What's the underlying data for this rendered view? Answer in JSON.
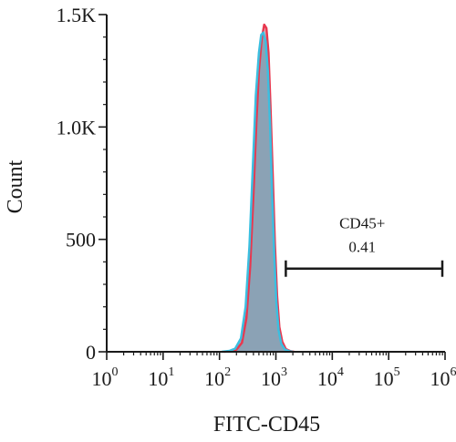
{
  "chart_data": {
    "type": "area",
    "title": "",
    "xlabel": "FITC-CD45",
    "ylabel": "Count",
    "x_scale": "log",
    "xlim": [
      1,
      1000000
    ],
    "ylim": [
      0,
      1500
    ],
    "x_ticks": [
      {
        "base": "10",
        "exp": "0"
      },
      {
        "base": "10",
        "exp": "1"
      },
      {
        "base": "10",
        "exp": "2"
      },
      {
        "base": "10",
        "exp": "3"
      },
      {
        "base": "10",
        "exp": "4"
      },
      {
        "base": "10",
        "exp": "5"
      },
      {
        "base": "10",
        "exp": "6"
      }
    ],
    "y_ticks": [
      {
        "value": 0,
        "label": "0"
      },
      {
        "value": 500,
        "label": "500"
      },
      {
        "value": 1000,
        "label": "1.0K"
      },
      {
        "value": 1500,
        "label": "1.5K"
      }
    ],
    "series": [
      {
        "color": "#e8384f",
        "x": [
          120,
          160,
          200,
          250,
          300,
          350,
          400,
          450,
          500,
          560,
          620,
          680,
          740,
          800,
          880,
          960,
          1050,
          1150,
          1300,
          1500,
          1800,
          2100
        ],
        "values": [
          0,
          3,
          10,
          40,
          150,
          380,
          700,
          1020,
          1250,
          1390,
          1455,
          1440,
          1330,
          1100,
          780,
          480,
          250,
          110,
          45,
          12,
          3,
          0
        ]
      },
      {
        "color": "#3bbfe0",
        "x": [
          110,
          150,
          190,
          240,
          290,
          340,
          390,
          440,
          500,
          550,
          600,
          660,
          720,
          790,
          860,
          940,
          1020,
          1120,
          1250,
          1450,
          1750,
          2000
        ],
        "values": [
          0,
          4,
          14,
          60,
          200,
          470,
          820,
          1140,
          1330,
          1410,
          1420,
          1380,
          1250,
          1000,
          700,
          420,
          220,
          95,
          35,
          10,
          2,
          0
        ]
      }
    ],
    "gate": {
      "name": "CD45+",
      "value": "0.41",
      "range": [
        1500,
        1000000
      ],
      "y": 370
    }
  }
}
